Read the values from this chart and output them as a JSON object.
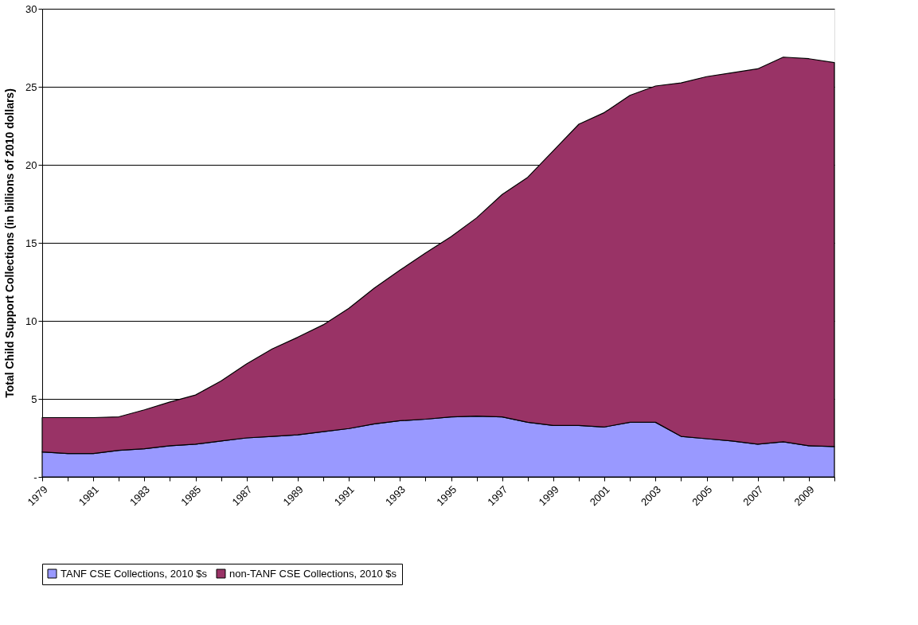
{
  "chart_data": {
    "type": "area",
    "stacked": true,
    "ylabel": "Total Child Support Collections (in billions of 2010 dollars)",
    "categories": [
      "1979",
      null,
      "1981",
      null,
      "1983",
      null,
      "1985",
      null,
      "1987",
      null,
      "1989",
      null,
      "1991",
      null,
      "1993",
      null,
      "1995",
      null,
      "1997",
      null,
      "1999",
      null,
      "2001",
      null,
      "2003",
      null,
      "2005",
      null,
      "2007",
      null,
      "2009",
      null
    ],
    "series": [
      {
        "name": "TANF CSE Collections, 2010 $s",
        "color": "#9999ff",
        "values": [
          1.6,
          1.5,
          1.5,
          1.7,
          1.8,
          2.0,
          2.1,
          2.3,
          2.5,
          2.6,
          2.7,
          2.9,
          3.1,
          3.4,
          3.6,
          3.7,
          3.85,
          3.9,
          3.85,
          3.5,
          3.3,
          3.3,
          3.2,
          3.5,
          3.5,
          2.6,
          2.45,
          2.3,
          2.1,
          2.25,
          2.0,
          1.95
        ]
      },
      {
        "name": "non-TANF CSE Collections, 2010 $s",
        "color": "#993366",
        "values": [
          2.2,
          2.3,
          2.3,
          2.15,
          2.5,
          2.8,
          3.15,
          3.85,
          4.75,
          5.6,
          6.25,
          6.85,
          7.7,
          8.7,
          9.65,
          10.65,
          11.55,
          12.7,
          14.25,
          15.7,
          17.6,
          19.3,
          20.15,
          20.95,
          21.55,
          22.65,
          23.2,
          23.6,
          24.05,
          24.65,
          24.8,
          24.6
        ]
      }
    ],
    "ylim": [
      0,
      30
    ],
    "yticks": [
      {
        "value": 0,
        "label": "-"
      },
      5,
      10,
      15,
      20,
      25,
      30
    ],
    "grid": "y",
    "legend": "bottom"
  }
}
